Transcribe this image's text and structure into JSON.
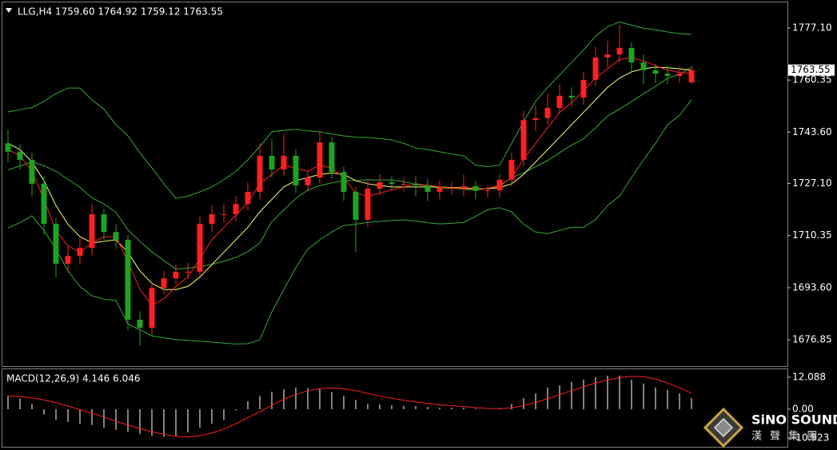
{
  "chart_data": [
    {
      "type": "candlestick",
      "title": "LLG,H4  1759.60 1764.92 1759.12 1763.55",
      "up_color": "#ff2020",
      "down_color": "#1fa31f",
      "open": [
        1740.0,
        1737.3,
        1734.7,
        1727.0,
        1714.1,
        1701.3,
        1703.8,
        1706.4,
        1717.2,
        1711.5,
        1709.0,
        1683.3,
        1680.7,
        1693.5,
        1696.6,
        1698.7,
        1698.7,
        1714.1,
        1717.2,
        1717.2,
        1720.5,
        1724.4,
        1736.0,
        1731.6,
        1736.0,
        1726.5,
        1729.0,
        1740.3,
        1730.8,
        1724.4,
        1715.4,
        1725.4,
        1727.5,
        1727.0,
        1727.0,
        1726.5,
        1724.4,
        1725.7,
        1725.7,
        1726.2,
        1724.9,
        1724.9,
        1728.3,
        1734.7,
        1747.5,
        1748.1,
        1751.4,
        1755.3,
        1754.7,
        1760.4,
        1767.6,
        1768.6,
        1770.7,
        1766.0,
        1763.5,
        1762.4,
        1761.7,
        1759.6
      ],
      "high": [
        1744.5,
        1739.8,
        1737.0,
        1729.5,
        1716.0,
        1707.0,
        1709.5,
        1720.5,
        1719.0,
        1714.0,
        1710.5,
        1686.0,
        1695.5,
        1699.0,
        1701.0,
        1701.5,
        1716.5,
        1720.0,
        1720.5,
        1723.0,
        1727.5,
        1740.0,
        1741.5,
        1743.0,
        1738.0,
        1731.0,
        1744.0,
        1742.0,
        1732.5,
        1726.0,
        1728.0,
        1730.0,
        1729.5,
        1729.0,
        1729.5,
        1728.5,
        1728.0,
        1727.5,
        1730.0,
        1728.0,
        1726.5,
        1730.0,
        1737.0,
        1750.5,
        1752.0,
        1756.0,
        1759.0,
        1758.0,
        1763.0,
        1771.0,
        1773.0,
        1778.0,
        1772.5,
        1768.5,
        1765.5,
        1765.0,
        1764.5,
        1764.92
      ],
      "low": [
        1734.0,
        1731.5,
        1723.0,
        1710.5,
        1697.0,
        1698.5,
        1701.0,
        1704.0,
        1709.0,
        1706.5,
        1680.0,
        1675.0,
        1678.5,
        1691.5,
        1694.5,
        1696.5,
        1697.0,
        1711.5,
        1714.5,
        1715.0,
        1718.5,
        1722.0,
        1729.0,
        1729.5,
        1724.0,
        1724.5,
        1727.0,
        1728.5,
        1721.5,
        1705.0,
        1713.0,
        1723.5,
        1725.0,
        1724.5,
        1723.0,
        1721.5,
        1722.0,
        1723.5,
        1723.0,
        1722.0,
        1722.5,
        1722.5,
        1726.0,
        1732.5,
        1744.0,
        1746.0,
        1749.5,
        1752.0,
        1752.5,
        1758.5,
        1764.5,
        1766.0,
        1763.0,
        1759.0,
        1759.5,
        1759.0,
        1759.5,
        1759.12
      ],
      "close": [
        1737.3,
        1734.7,
        1727.0,
        1714.1,
        1701.3,
        1703.8,
        1706.4,
        1717.2,
        1711.5,
        1709.0,
        1683.3,
        1680.7,
        1693.5,
        1696.6,
        1698.7,
        1698.7,
        1714.1,
        1717.2,
        1717.2,
        1720.5,
        1724.4,
        1736.0,
        1731.6,
        1736.0,
        1726.5,
        1729.0,
        1740.3,
        1730.8,
        1724.4,
        1715.4,
        1725.4,
        1727.5,
        1727.0,
        1727.0,
        1726.5,
        1724.4,
        1725.7,
        1725.7,
        1726.2,
        1724.9,
        1724.9,
        1728.3,
        1734.7,
        1747.5,
        1748.1,
        1751.4,
        1755.3,
        1754.7,
        1760.4,
        1767.6,
        1768.6,
        1770.7,
        1766.0,
        1763.5,
        1762.4,
        1761.7,
        1762.4,
        1763.55
      ],
      "series": [
        {
          "color": "#3aa83a",
          "values": [
            1750.1,
            1750.8,
            1751.5,
            1753.5,
            1756,
            1757.8,
            1757.8,
            1754,
            1751,
            1746,
            1742.4,
            1737,
            1732.1,
            1727,
            1722.3,
            1723,
            1724.4,
            1726,
            1728.3,
            1731,
            1734.7,
            1739,
            1743.7,
            1744.2,
            1744.5,
            1744,
            1743.7,
            1743,
            1742.4,
            1742,
            1741.9,
            1741.5,
            1741.1,
            1740,
            1738.5,
            1738,
            1737.3,
            1736.6,
            1736.0,
            1733,
            1732.5,
            1733,
            1740,
            1747,
            1753.5,
            1758,
            1762,
            1766,
            1770,
            1774.5,
            1777.5,
            1779,
            1778,
            1777,
            1776.5,
            1775.8,
            1775.3,
            1775.0
          ]
        },
        {
          "color": "#3aa83a",
          "values": [
            1731.5,
            1732.7,
            1734.1,
            1732.8,
            1731,
            1728.4,
            1725.9,
            1722.5,
            1720.5,
            1717.8,
            1712.2,
            1708.5,
            1705.1,
            1702.3,
            1699.6,
            1699.9,
            1700.4,
            1701.1,
            1702.1,
            1703.3,
            1705.2,
            1708,
            1714.8,
            1718.6,
            1722.3,
            1725,
            1726.4,
            1727.3,
            1728,
            1728,
            1728.3,
            1728.2,
            1728.2,
            1727.7,
            1726.8,
            1726.3,
            1725.7,
            1725.5,
            1725.3,
            1724.8,
            1725.6,
            1726.2,
            1729,
            1730.5,
            1732.5,
            1734.5,
            1737,
            1739.5,
            1741.5,
            1745,
            1748.8,
            1751,
            1753.5,
            1755.9,
            1758.3,
            1760.9,
            1762.2,
            1764.5
          ]
        },
        {
          "color": "#3aa83a",
          "values": [
            1712.8,
            1714.5,
            1716.7,
            1712,
            1706,
            1699,
            1694,
            1691,
            1689.9,
            1689.5,
            1682.0,
            1680,
            1678.1,
            1677.5,
            1676.9,
            1676.7,
            1676.4,
            1676.1,
            1675.8,
            1675.5,
            1675.6,
            1676.9,
            1685.8,
            1693,
            1700,
            1706,
            1709,
            1711.5,
            1713.6,
            1714,
            1714.6,
            1714.9,
            1715.2,
            1715.4,
            1715,
            1714.5,
            1714.1,
            1714.3,
            1714.6,
            1716.5,
            1718.7,
            1719.3,
            1718.0,
            1714,
            1711.5,
            1711.0,
            1712.0,
            1713.0,
            1713,
            1715.5,
            1720,
            1723.1,
            1729,
            1734.7,
            1740,
            1746,
            1749,
            1754.0
          ]
        },
        {
          "color": "#ffff66",
          "values": [
            1740,
            1738,
            1734,
            1728,
            1720,
            1714,
            1710,
            1708,
            1708.5,
            1709,
            1705,
            1699,
            1695,
            1693,
            1693,
            1694,
            1697,
            1701,
            1705,
            1709,
            1713,
            1718,
            1722,
            1726,
            1728,
            1729,
            1730,
            1730.5,
            1730,
            1728,
            1727,
            1726.5,
            1726,
            1726,
            1726,
            1726,
            1726,
            1725.8,
            1725.7,
            1725.5,
            1725.4,
            1725.8,
            1727,
            1730,
            1734,
            1738,
            1742,
            1746,
            1750,
            1754,
            1758,
            1761,
            1763,
            1764,
            1764.5,
            1764.3,
            1764,
            1763.5
          ]
        },
        {
          "color": "#ff2020",
          "values": [
            1738,
            1736,
            1731,
            1722,
            1712,
            1707,
            1705,
            1708,
            1710,
            1710,
            1702,
            1693,
            1688,
            1690,
            1694,
            1697,
            1703,
            1709,
            1713,
            1717,
            1721,
            1727,
            1730,
            1733,
            1732,
            1731,
            1733,
            1732,
            1729,
            1724,
            1723,
            1724,
            1725,
            1726,
            1727,
            1726.5,
            1726,
            1725.6,
            1725.5,
            1725.3,
            1725.5,
            1726.5,
            1729,
            1735,
            1740,
            1745,
            1750,
            1753,
            1757,
            1761,
            1764,
            1767,
            1767.5,
            1766.5,
            1765,
            1763.5,
            1762.8,
            1762.5
          ]
        }
      ],
      "ylim": [
        1668.4,
        1784.8
      ],
      "yticks": [
        {
          "value": 1777.1,
          "label": "1777.10"
        },
        1760.35,
        {
          "value": 1743.6,
          "label": "1743.60"
        },
        {
          "value": 1727.1,
          "label": "1727.10"
        },
        1710.35,
        {
          "value": 1693.6,
          "label": "1693.60"
        },
        1676.85
      ]
    },
    {
      "type": "macd",
      "title": "MACD(12,26,9) 4.146 6.046",
      "color": "#d8d8d8",
      "values": [
        5.0,
        4.0,
        2.0,
        -2.0,
        -4.0,
        -4.8,
        -5.5,
        -6.0,
        -7.0,
        -7.8,
        -8.5,
        -9.3,
        -10.0,
        -10.5,
        -10.0,
        -8.8,
        -7.0,
        -5.5,
        -4.0,
        -0.5,
        3.0,
        5.0,
        6.6,
        7.5,
        8.2,
        8.0,
        7.6,
        6.5,
        5.0,
        3.5,
        2.0,
        1.8,
        1.5,
        1.3,
        1.2,
        0.9,
        0.6,
        0.6,
        0.6,
        0.3,
        0.0,
        0.5,
        2.0,
        4.2,
        6.0,
        8.2,
        9.0,
        10.3,
        11.2,
        12.1,
        12.7,
        12.7,
        11.2,
        9.7,
        8.2,
        7.3,
        6.0,
        4.146
      ],
      "series": [
        {
          "color": "#ff2020",
          "values": [
            5.0,
            4.8,
            4.3,
            3.5,
            2.5,
            1.2,
            -0.2,
            -1.5,
            -3.0,
            -4.5,
            -6.0,
            -7.3,
            -8.5,
            -9.5,
            -10.2,
            -10.5,
            -10.0,
            -9.0,
            -7.5,
            -5.5,
            -3.2,
            -1.0,
            1.5,
            3.8,
            5.6,
            7.0,
            7.8,
            8.0,
            7.7,
            7.0,
            6.0,
            5.0,
            4.1,
            3.4,
            2.8,
            2.2,
            1.7,
            1.3,
            1.0,
            0.6,
            0.3,
            0.2,
            0.5,
            1.4,
            2.6,
            4.0,
            5.5,
            7.0,
            8.5,
            9.9,
            11.1,
            12.0,
            12.4,
            12.3,
            11.4,
            9.9,
            8.1,
            6.046
          ]
        }
      ],
      "ylim": [
        -13.9,
        15.1
      ],
      "yticks": [
        12.088,
        {
          "value": 0,
          "label": "0.00"
        },
        -10.923
      ]
    }
  ],
  "watermark": {
    "name": "SiNO SOUND",
    "sub": "漢 聲 集 團"
  }
}
